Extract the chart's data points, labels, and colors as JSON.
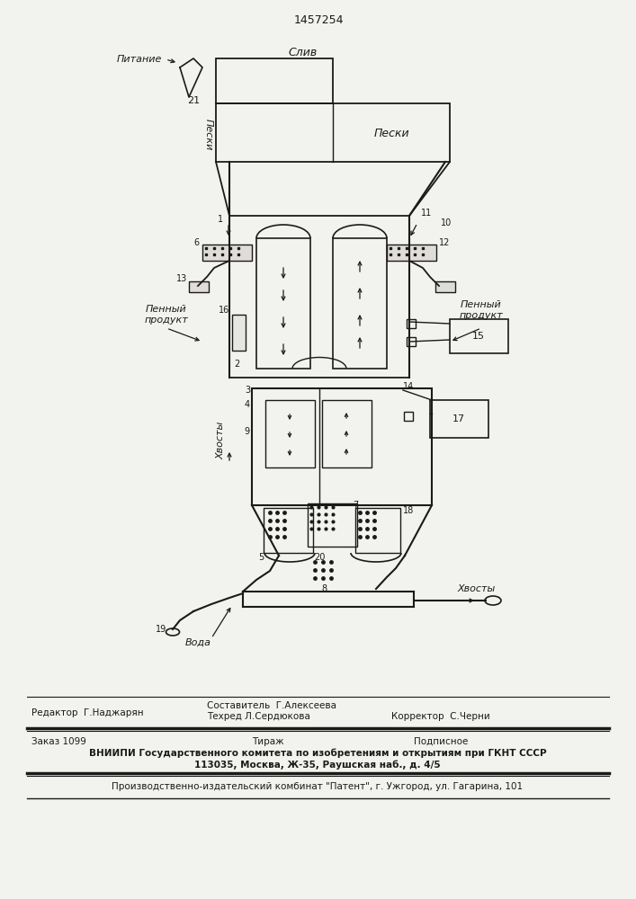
{
  "patent_number": "1457254",
  "bg_color": "#f2f2ee",
  "line_color": "#1a1a1a",
  "labels": {
    "sliv": "Слив",
    "pitanie": "Питание",
    "peski_top": "Пески",
    "peski_left": "Пески",
    "pennyy_produkt_left": "Пенный\nпродукт",
    "pennyy_produkt_right": "Пенный\nпродукт",
    "hvost_label": "Хвосты",
    "voda": "Вода",
    "hvosty": "Хвосты",
    "num_1": "1",
    "num_2": "2",
    "num_3": "3",
    "num_4": "4",
    "num_5": "5",
    "num_6": "6",
    "num_7": "7",
    "num_8": "8",
    "num_9": "9",
    "num_10": "10",
    "num_11": "11",
    "num_12": "12",
    "num_13": "13",
    "num_14": "14",
    "num_15": "15",
    "num_16": "16",
    "num_17": "17",
    "num_18": "18",
    "num_19": "19",
    "num_20": "20",
    "num_21": "21"
  },
  "footer": {
    "sostavitel": "Составитель  Г.Алексеева",
    "redaktor": "Редактор  Г.Наджарян",
    "tehred": "Техред Л.Сердюкова",
    "korrektor": "Корректор  С.Черни",
    "zakaz": "Заказ 1099",
    "tirazh": "Тираж",
    "podpisnoe": "Подписное",
    "vniiipi": "ВНИИПИ Государственного комитета по изобретениям и открытиям при ГКНТ СССР",
    "address": "113035, Москва, Ж-35, Раушская наб., д. 4/5",
    "kombinat": "Производственно-издательский комбинат \"Патент\", г. Ужгород, ул. Гагарина, 101"
  }
}
